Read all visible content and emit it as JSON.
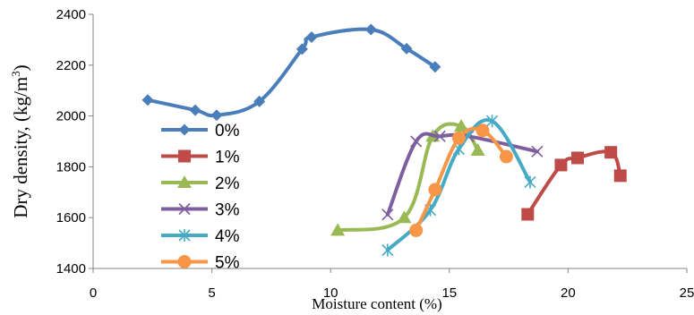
{
  "chart_data": {
    "type": "scatter",
    "title": "",
    "xlabel": "Moisture content (%)",
    "ylabel_main": "Dry  density, (kg/m",
    "ylabel_sup": "3",
    "ylabel_end": ")",
    "xlim": [
      0,
      25
    ],
    "ylim": [
      1400,
      2400
    ],
    "xticks": [
      0,
      5,
      10,
      15,
      20,
      25
    ],
    "yticks": [
      1400,
      1600,
      1800,
      2000,
      2200,
      2400
    ],
    "grid": false,
    "legend_position": "left-center",
    "series": [
      {
        "name": "0%",
        "color": "#4a7ebb",
        "marker": "diamond",
        "x": [
          2.3,
          4.3,
          5.2,
          7.0,
          8.8,
          9.2,
          11.7,
          13.2,
          14.4
        ],
        "y": [
          2063,
          2023,
          2003,
          2057,
          2263,
          2310,
          2340,
          2265,
          2193
        ]
      },
      {
        "name": "1%",
        "color": "#be4b48",
        "marker": "square",
        "x": [
          18.3,
          19.7,
          20.4,
          21.8,
          22.2
        ],
        "y": [
          1613,
          1807,
          1835,
          1857,
          1765
        ]
      },
      {
        "name": "2%",
        "color": "#98b954",
        "marker": "triangle",
        "x": [
          10.3,
          13.1,
          14.3,
          15.5,
          16.2
        ],
        "y": [
          1550,
          1600,
          1920,
          1960,
          1865
        ]
      },
      {
        "name": "3%",
        "color": "#7d5fa0",
        "marker": "x",
        "x": [
          12.4,
          13.6,
          14.6,
          15.8,
          18.7
        ],
        "y": [
          1612,
          1900,
          1920,
          1920,
          1860
        ]
      },
      {
        "name": "4%",
        "color": "#46aac5",
        "marker": "asterisk",
        "x": [
          12.4,
          14.2,
          15.4,
          16.8,
          18.4
        ],
        "y": [
          1472,
          1630,
          1870,
          1980,
          1740
        ]
      },
      {
        "name": "5%",
        "color": "#f79646",
        "marker": "circle",
        "x": [
          13.6,
          14.4,
          15.4,
          16.4,
          17.4
        ],
        "y": [
          1550,
          1710,
          1913,
          1943,
          1840
        ]
      }
    ]
  }
}
